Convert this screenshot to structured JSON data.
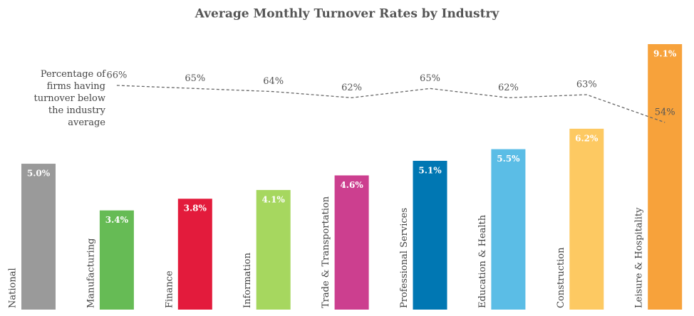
{
  "chart_data": {
    "type": "bar",
    "title": "Average Monthly Turnover Rates by Industry",
    "categories": [
      "National",
      "Manufacturing",
      "Finance",
      "Information",
      "Trade & Transportation",
      "Professional Services",
      "Education & Health",
      "Construction",
      "Leisure & Hospitality"
    ],
    "values": [
      5.0,
      3.4,
      3.8,
      4.1,
      4.6,
      5.1,
      5.5,
      6.2,
      9.1
    ],
    "value_labels": [
      "5.0%",
      "3.4%",
      "3.8%",
      "4.1%",
      "4.6%",
      "5.1%",
      "5.5%",
      "6.2%",
      "9.1%"
    ],
    "colors": [
      "#9a9a9a",
      "#66bb55",
      "#e31b3c",
      "#a6d75f",
      "#cc3f8f",
      "#0077b3",
      "#5bbde6",
      "#fdc962",
      "#f7a23b"
    ],
    "line": {
      "name": "Percentage of firms having turnover below the industry average",
      "color": "#666666",
      "values": [
        null,
        66,
        65,
        64,
        62,
        65,
        62,
        63,
        54
      ],
      "value_labels": [
        null,
        "66%",
        "65%",
        "64%",
        "62%",
        "65%",
        "62%",
        "63%",
        "54%"
      ]
    }
  }
}
